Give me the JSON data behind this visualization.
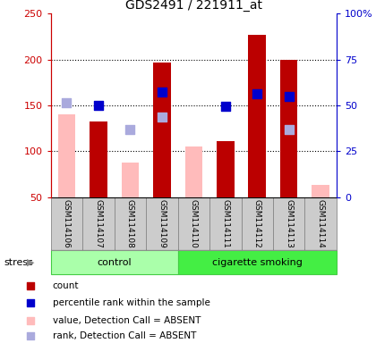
{
  "title": "GDS2491 / 221911_at",
  "samples": [
    "GSM114106",
    "GSM114107",
    "GSM114108",
    "GSM114109",
    "GSM114110",
    "GSM114111",
    "GSM114112",
    "GSM114113",
    "GSM114114"
  ],
  "groups": [
    {
      "label": "control",
      "color": "#aaffaa",
      "border": "#44cc44",
      "samples_range": [
        0,
        3
      ]
    },
    {
      "label": "cigarette smoking",
      "color": "#44ee44",
      "border": "#44cc44",
      "samples_range": [
        4,
        8
      ]
    }
  ],
  "red_bars": [
    null,
    133,
    null,
    197,
    null,
    111,
    227,
    200,
    null
  ],
  "pink_bars": [
    140,
    null,
    88,
    null,
    105,
    null,
    null,
    null,
    63
  ],
  "blue_squares": [
    null,
    150,
    null,
    165,
    null,
    149,
    163,
    160,
    null
  ],
  "lavender_squares": [
    153,
    null,
    124,
    137,
    null,
    null,
    null,
    124,
    null
  ],
  "left_ylim": [
    50,
    250
  ],
  "right_ylim": [
    0,
    100
  ],
  "left_yticks": [
    50,
    100,
    150,
    200,
    250
  ],
  "right_yticks": [
    0,
    25,
    50,
    75,
    100
  ],
  "right_yticklabels": [
    "0",
    "25",
    "50",
    "75",
    "100%"
  ],
  "hlines": [
    100,
    150,
    200
  ],
  "bar_width": 0.55,
  "red_color": "#bb0000",
  "pink_color": "#ffbbbb",
  "blue_color": "#0000cc",
  "lavender_color": "#aaaadd",
  "legend_items": [
    {
      "color": "#bb0000",
      "label": "count"
    },
    {
      "color": "#0000cc",
      "label": "percentile rank within the sample"
    },
    {
      "color": "#ffbbbb",
      "label": "value, Detection Call = ABSENT"
    },
    {
      "color": "#aaaadd",
      "label": "rank, Detection Call = ABSENT"
    }
  ],
  "stress_label": "stress",
  "left_ylabel_color": "#cc0000",
  "right_ylabel_color": "#0000cc",
  "sample_box_color": "#cccccc",
  "sample_box_edge": "#888888"
}
